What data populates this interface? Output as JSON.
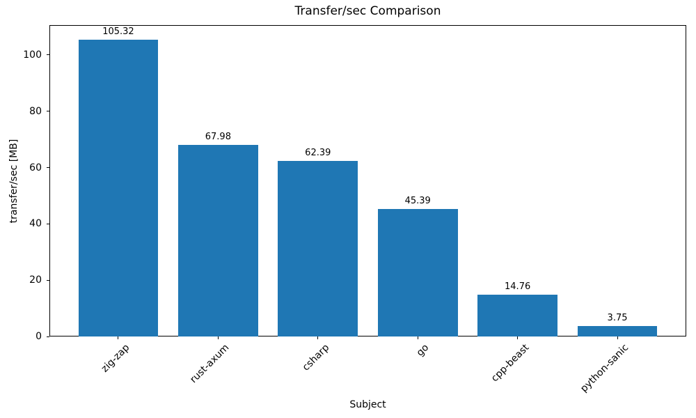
{
  "figure": {
    "title": "Transfer/sec Comparison",
    "xlabel": "Subject",
    "ylabel": "transfer/sec [MB]"
  },
  "chart_data": {
    "type": "bar",
    "title": "Transfer/sec Comparison",
    "xlabel": "Subject",
    "ylabel": "transfer/sec [MB]",
    "categories": [
      "zig-zap",
      "rust-axum",
      "csharp",
      "go",
      "cpp-beast",
      "python-sanic"
    ],
    "values": [
      105.32,
      67.98,
      62.39,
      45.39,
      14.76,
      3.75
    ],
    "value_labels": [
      "105.32",
      "67.98",
      "62.39",
      "45.39",
      "14.76",
      "3.75"
    ],
    "yticks": [
      0,
      20,
      40,
      60,
      80,
      100
    ],
    "ylim": [
      0,
      110.6
    ],
    "bar_color": "#1f77b4",
    "grid": false,
    "legend_position": "none",
    "x_tick_rotation_deg": 45
  }
}
